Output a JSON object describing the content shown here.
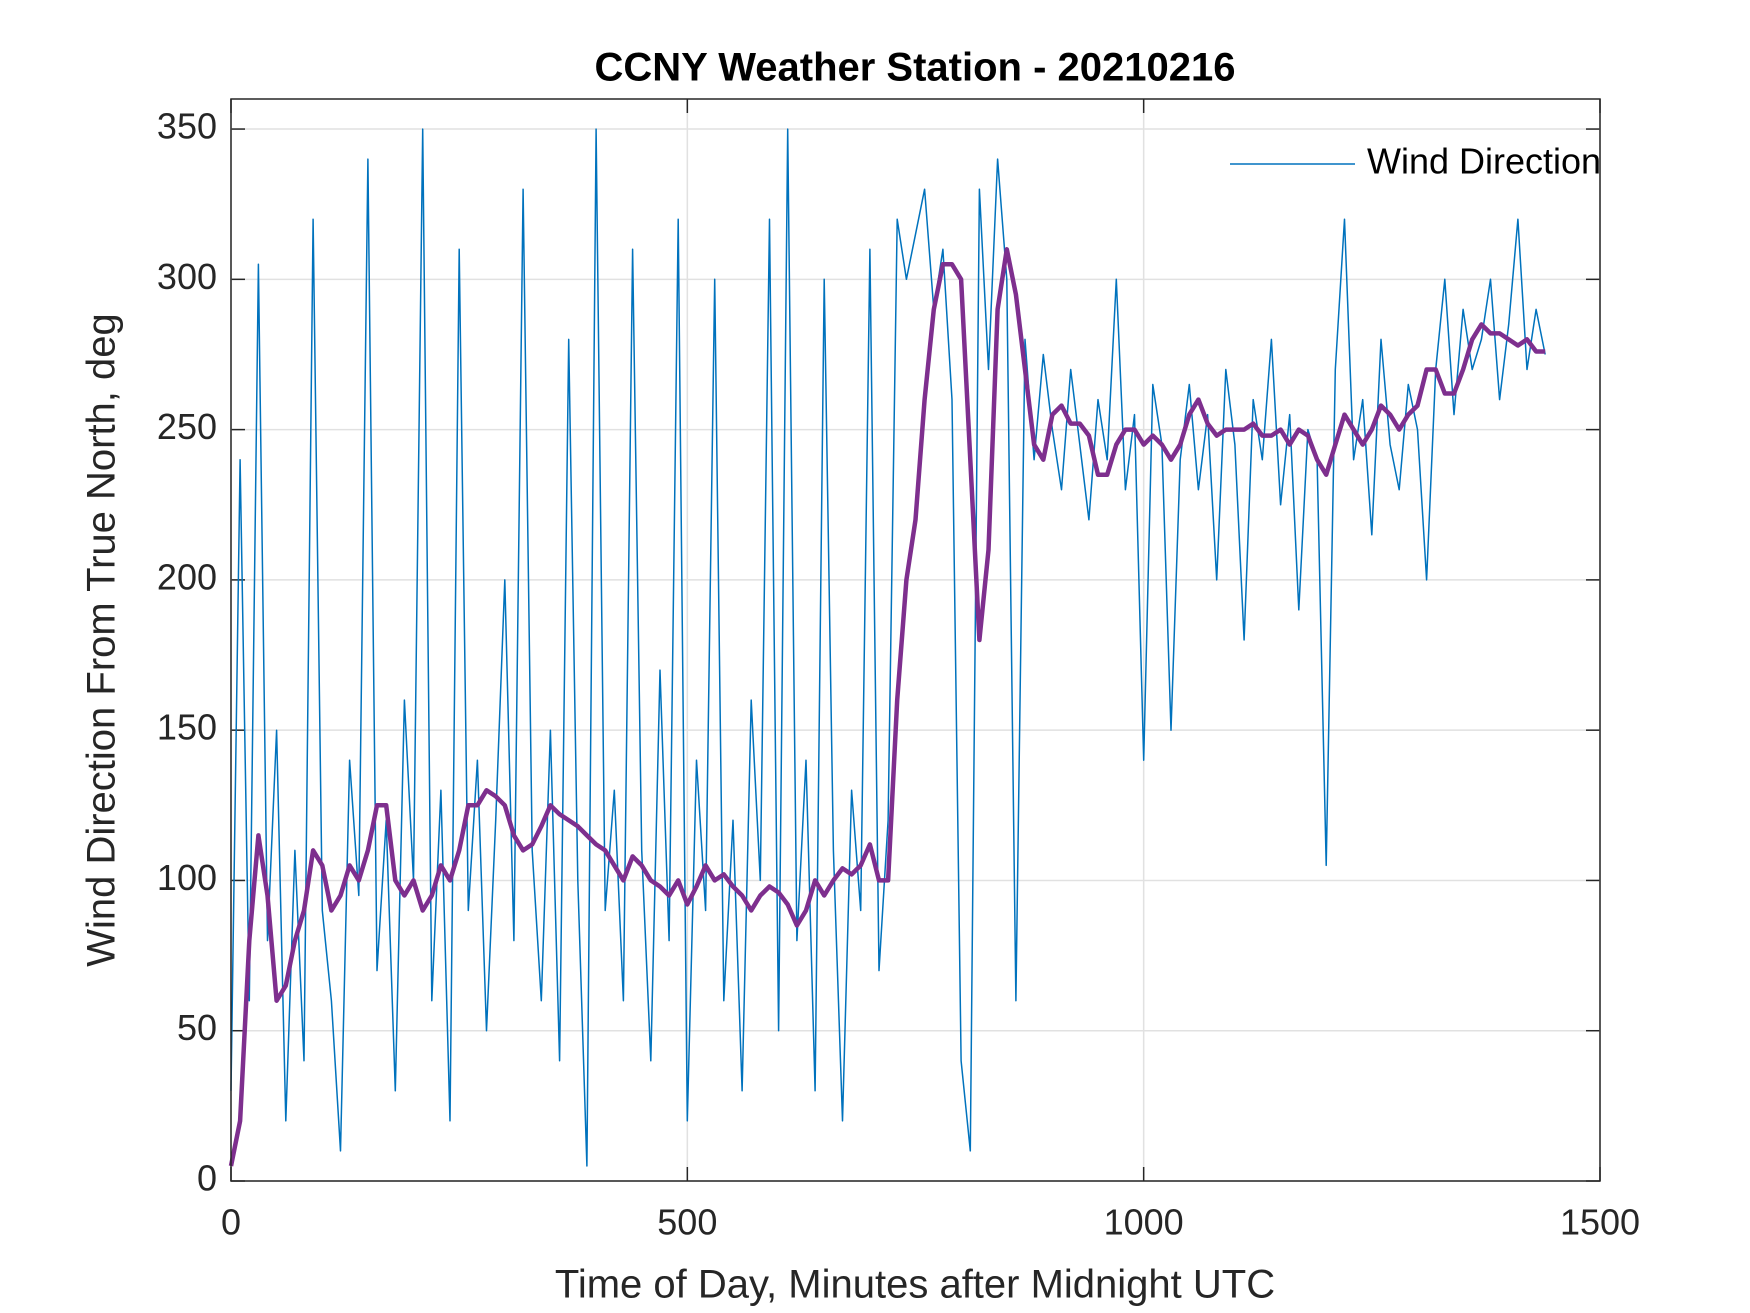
{
  "chart_data": {
    "type": "line",
    "title": "CCNY Weather Station - 20210216",
    "x_label": "Time of Day, Minutes after Midnight UTC",
    "y_label": "Wind Direction From True North, deg",
    "x": [
      0,
      10,
      20,
      30,
      40,
      50,
      60,
      70,
      80,
      90,
      100,
      110,
      120,
      130,
      140,
      150,
      160,
      170,
      180,
      190,
      200,
      210,
      220,
      230,
      240,
      250,
      260,
      270,
      280,
      290,
      300,
      310,
      320,
      330,
      340,
      350,
      360,
      370,
      380,
      390,
      400,
      410,
      420,
      430,
      440,
      450,
      460,
      470,
      480,
      490,
      500,
      510,
      520,
      530,
      540,
      550,
      560,
      570,
      580,
      590,
      600,
      610,
      620,
      630,
      640,
      650,
      660,
      670,
      680,
      690,
      700,
      710,
      720,
      730,
      740,
      750,
      760,
      770,
      780,
      790,
      800,
      810,
      820,
      830,
      840,
      850,
      860,
      870,
      880,
      890,
      900,
      910,
      920,
      930,
      940,
      950,
      960,
      970,
      980,
      990,
      1000,
      1010,
      1020,
      1030,
      1040,
      1050,
      1060,
      1070,
      1080,
      1090,
      1100,
      1110,
      1120,
      1130,
      1140,
      1150,
      1160,
      1170,
      1180,
      1190,
      1200,
      1210,
      1220,
      1230,
      1240,
      1250,
      1260,
      1270,
      1280,
      1290,
      1300,
      1310,
      1320,
      1330,
      1340,
      1350,
      1360,
      1370,
      1380,
      1390,
      1400,
      1410,
      1420,
      1430,
      1440
    ],
    "series": [
      {
        "name": "Wind Direction",
        "color": "#0072bd",
        "width": 1.5,
        "values": [
          30,
          240,
          60,
          305,
          80,
          150,
          20,
          110,
          40,
          320,
          90,
          60,
          10,
          140,
          95,
          340,
          70,
          120,
          30,
          160,
          100,
          350,
          60,
          130,
          20,
          310,
          90,
          140,
          50,
          120,
          200,
          80,
          330,
          110,
          60,
          150,
          40,
          280,
          100,
          5,
          350,
          90,
          130,
          60,
          310,
          110,
          40,
          170,
          80,
          320,
          20,
          140,
          90,
          300,
          60,
          120,
          30,
          160,
          100,
          320,
          50,
          350,
          80,
          140,
          30,
          300,
          110,
          20,
          130,
          90,
          310,
          70,
          120,
          320,
          300,
          315,
          330,
          290,
          310,
          260,
          40,
          10,
          330,
          270,
          340,
          300,
          60,
          280,
          240,
          275,
          250,
          230,
          270,
          245,
          220,
          260,
          240,
          300,
          230,
          255,
          140,
          265,
          245,
          150,
          240,
          265,
          230,
          255,
          200,
          270,
          245,
          180,
          260,
          240,
          280,
          225,
          255,
          190,
          250,
          240,
          105,
          270,
          320,
          240,
          260,
          215,
          280,
          245,
          230,
          265,
          250,
          200,
          270,
          300,
          255,
          290,
          270,
          280,
          300,
          260,
          285,
          320,
          270,
          290,
          275
        ]
      },
      {
        "color": "#7e2f8e",
        "width": 4.5,
        "values": [
          5,
          20,
          80,
          115,
          95,
          60,
          65,
          80,
          90,
          110,
          105,
          90,
          95,
          105,
          100,
          110,
          125,
          125,
          100,
          95,
          100,
          90,
          95,
          105,
          100,
          110,
          125,
          125,
          130,
          128,
          125,
          115,
          110,
          112,
          118,
          125,
          122,
          120,
          118,
          115,
          112,
          110,
          105,
          100,
          108,
          105,
          100,
          98,
          95,
          100,
          92,
          98,
          105,
          100,
          102,
          98,
          95,
          90,
          95,
          98,
          96,
          92,
          85,
          90,
          100,
          95,
          100,
          104,
          102,
          105,
          112,
          100,
          100,
          160,
          200,
          220,
          260,
          290,
          305,
          305,
          300,
          240,
          180,
          210,
          290,
          310,
          295,
          270,
          245,
          240,
          255,
          258,
          252,
          252,
          248,
          235,
          235,
          245,
          250,
          250,
          245,
          248,
          245,
          240,
          245,
          255,
          260,
          252,
          248,
          250,
          250,
          250,
          252,
          248,
          248,
          250,
          245,
          250,
          248,
          240,
          235,
          245,
          255,
          250,
          245,
          250,
          258,
          255,
          250,
          255,
          258,
          270,
          270,
          262,
          262,
          270,
          280,
          285,
          282,
          282,
          280,
          278,
          280,
          276,
          276
        ]
      }
    ],
    "xlim": [
      0,
      1500
    ],
    "xticks": [
      0,
      500,
      1000,
      1500
    ],
    "ylim": [
      0,
      360
    ],
    "yticks": [
      0,
      50,
      100,
      150,
      200,
      250,
      300,
      350
    ],
    "grid": true,
    "legend": "northeast"
  }
}
